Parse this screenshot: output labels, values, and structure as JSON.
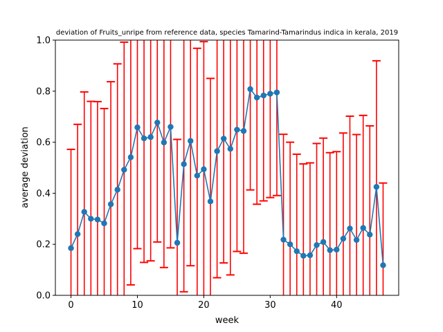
{
  "chart_data": {
    "type": "line",
    "title": "deviation of Fruits_unripe from reference data, species Tamarind-Tamarindus indica in kerala, 2019",
    "xlabel": "week",
    "ylabel": "average deviation",
    "xlim": [
      -2.35,
      49.35
    ],
    "ylim": [
      0.0,
      1.0
    ],
    "x_ticks": [
      0,
      10,
      20,
      30,
      40
    ],
    "y_ticks": [
      0.0,
      0.2,
      0.4,
      0.6,
      0.8,
      1.0
    ],
    "x_tick_labels": [
      "0",
      "10",
      "20",
      "30",
      "40"
    ],
    "y_tick_labels": [
      "0.0",
      "0.2",
      "0.4",
      "0.6",
      "0.8",
      "1.0"
    ],
    "grid": false,
    "line_color": "#1f77b4",
    "error_color": "#ff0000",
    "series": [
      {
        "x": [
          0,
          1,
          2,
          3,
          4,
          5,
          6,
          7,
          8,
          9,
          10,
          11,
          12,
          13,
          14,
          15,
          16,
          17,
          18,
          19,
          20,
          21,
          22,
          23,
          24,
          25,
          26,
          27,
          28,
          29,
          30,
          31,
          32,
          33,
          34,
          35,
          36,
          37,
          38,
          39,
          40,
          41,
          42,
          43,
          44,
          45,
          46,
          47
        ],
        "y": [
          0.185,
          0.24,
          0.327,
          0.3,
          0.297,
          0.282,
          0.357,
          0.414,
          0.492,
          0.541,
          0.658,
          0.615,
          0.62,
          0.677,
          0.599,
          0.66,
          0.206,
          0.514,
          0.605,
          0.469,
          0.494,
          0.368,
          0.565,
          0.614,
          0.574,
          0.649,
          0.644,
          0.808,
          0.775,
          0.783,
          0.79,
          0.795,
          0.218,
          0.2,
          0.173,
          0.155,
          0.157,
          0.197,
          0.209,
          0.177,
          0.179,
          0.222,
          0.262,
          0.217,
          0.264,
          0.238,
          0.425,
          0.118
        ],
        "err": [
          0.387,
          0.43,
          0.47,
          0.46,
          0.462,
          0.45,
          0.48,
          0.493,
          0.5,
          0.5,
          0.475,
          0.486,
          0.485,
          0.468,
          0.49,
          0.474,
          0.405,
          0.5,
          0.489,
          0.499,
          0.5,
          0.482,
          0.496,
          0.487,
          0.494,
          0.477,
          0.479,
          0.395,
          0.418,
          0.413,
          0.407,
          0.404,
          0.413,
          0.4,
          0.38,
          0.36,
          0.362,
          0.398,
          0.407,
          0.382,
          0.384,
          0.414,
          0.44,
          0.413,
          0.441,
          0.426,
          0.494,
          0.322
        ]
      }
    ]
  }
}
